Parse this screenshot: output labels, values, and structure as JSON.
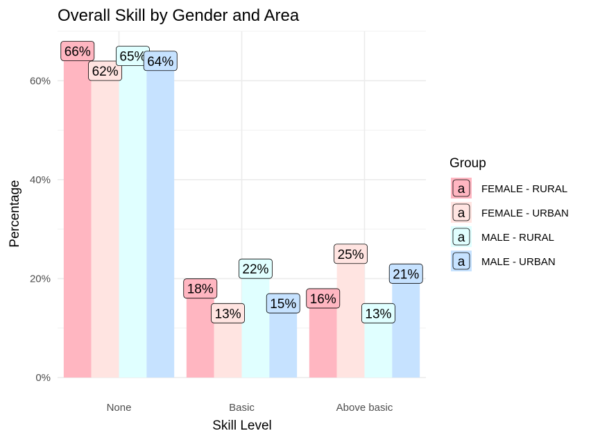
{
  "chart_data": {
    "type": "bar",
    "title": "Overall Skill by Gender and Area",
    "xlabel": "Skill Level",
    "ylabel": "Percentage",
    "categories": [
      "None",
      "Basic",
      "Above basic"
    ],
    "ylim": [
      0,
      70
    ],
    "yticks": [
      0,
      20,
      40,
      60
    ],
    "ytick_labels": [
      "0%",
      "20%",
      "40%",
      "60%"
    ],
    "grid": true,
    "legend_title": "Group",
    "legend_position": "right",
    "legend_key_glyph": "a",
    "series": [
      {
        "name": "FEMALE - RURAL",
        "color": "#FFB6C1",
        "values": [
          66,
          18,
          16
        ],
        "labels": [
          "66%",
          "18%",
          "16%"
        ]
      },
      {
        "name": "FEMALE - URBAN",
        "color": "#FFE4E1",
        "values": [
          62,
          13,
          25
        ],
        "labels": [
          "62%",
          "13%",
          "25%"
        ]
      },
      {
        "name": "MALE - RURAL",
        "color": "#E0FFFF",
        "values": [
          65,
          22,
          13
        ],
        "labels": [
          "65%",
          "22%",
          "13%"
        ]
      },
      {
        "name": "MALE - URBAN",
        "color": "#C6E2FF",
        "values": [
          64,
          15,
          21
        ],
        "labels": [
          "64%",
          "15%",
          "21%"
        ]
      }
    ]
  }
}
